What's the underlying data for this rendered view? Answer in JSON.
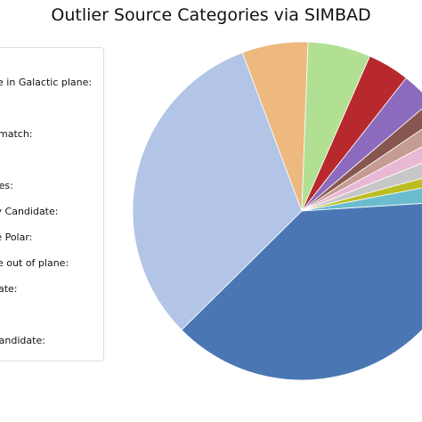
{
  "chart_data": {
    "type": "pie",
    "title": "Outlier Source Categories via SIMBAD",
    "legend_placement": "left (clipped at image edge)",
    "legend_items": [
      "ce in Galactic plane:",
      "match:",
      "ries:",
      "ry Candidate:",
      "te Polar:",
      "ce out of plane:",
      "date:",
      "Candidate:"
    ],
    "slices": [
      {
        "value": 38.6,
        "color": "#4a77b4"
      },
      {
        "value": 31.7,
        "color": "#b2c5e6"
      },
      {
        "value": 6.3,
        "color": "#edb97f"
      },
      {
        "value": 6.0,
        "color": "#b2e093"
      },
      {
        "value": 4.0,
        "color": "#b8292d"
      },
      {
        "value": 3.2,
        "color": "#8c6bbe"
      },
      {
        "value": 1.7,
        "color": "#87574f"
      },
      {
        "value": 1.7,
        "color": "#c49c94"
      },
      {
        "value": 1.8,
        "color": "#e9b8d4"
      },
      {
        "value": 1.8,
        "color": "#c7c7c7"
      },
      {
        "value": 1.2,
        "color": "#bcbd22"
      },
      {
        "value": 2.0,
        "color": "#6cbcd0"
      }
    ]
  }
}
